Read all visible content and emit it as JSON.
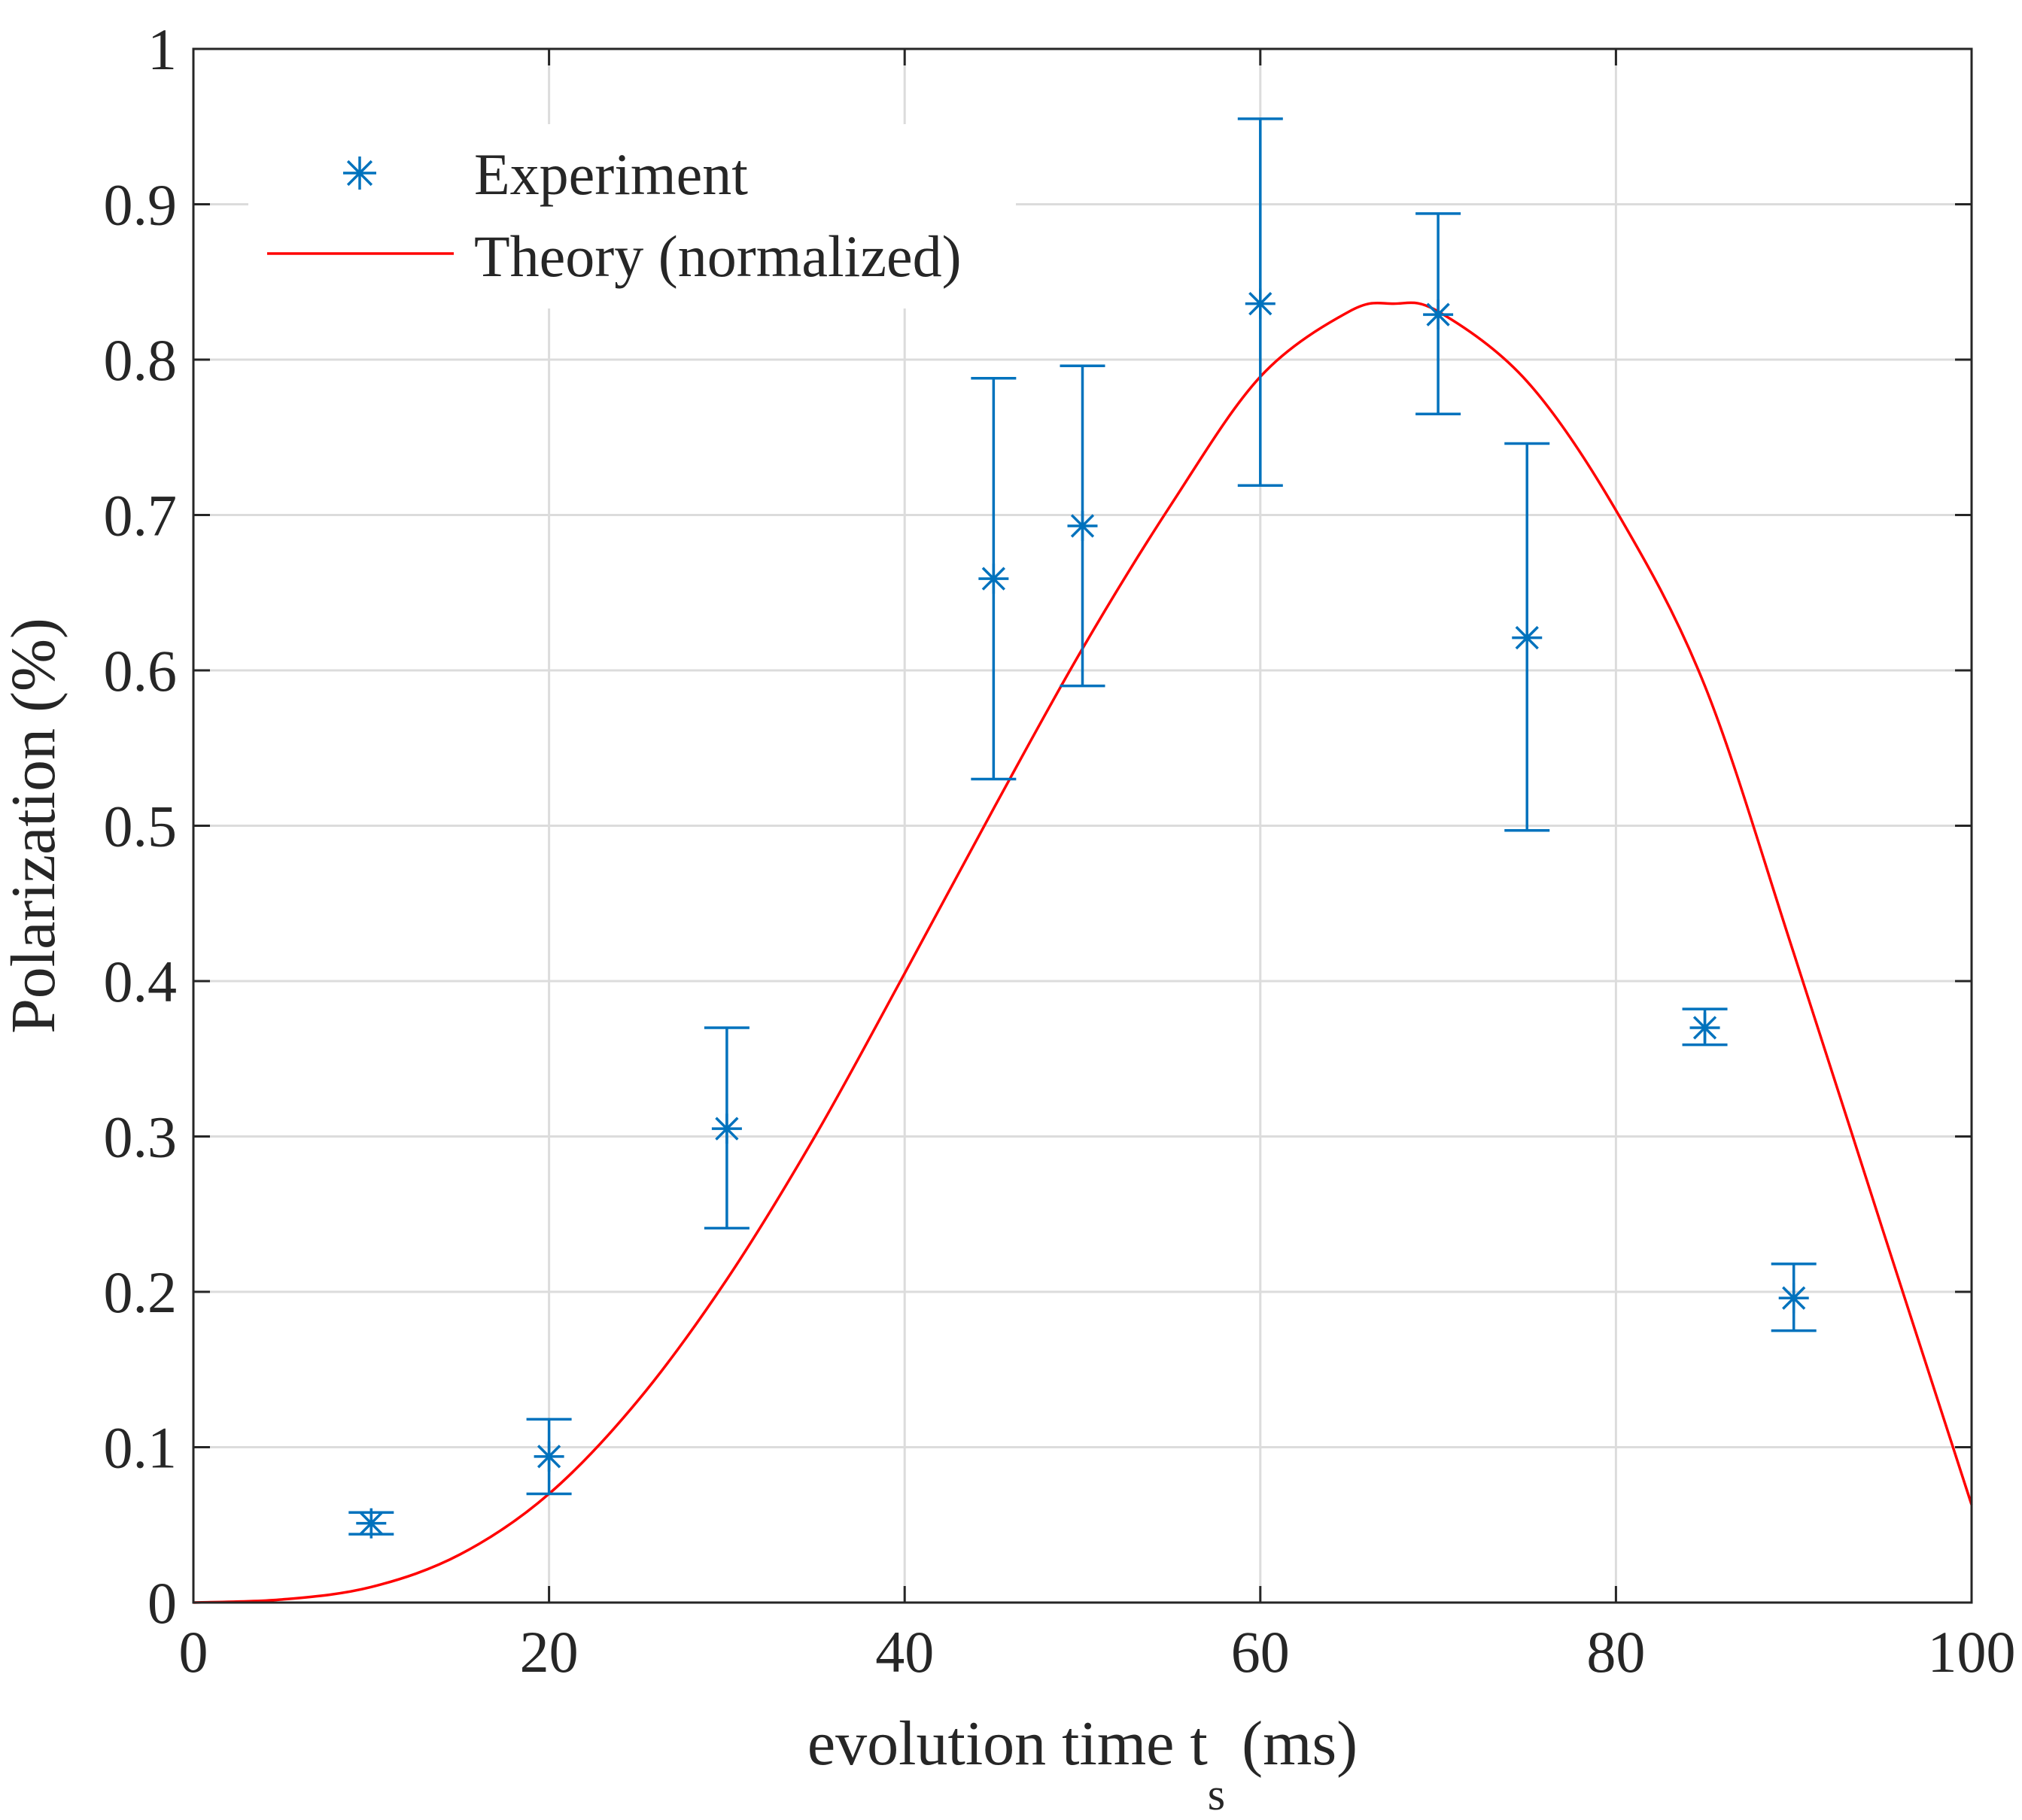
{
  "chart_data": {
    "type": "scatter",
    "title": "",
    "xlabel": "evolution time t",
    "xlabel_subscript": "s",
    "xlabel_unit": "(ms)",
    "ylabel": "Polarization (%)",
    "xlim": [
      0,
      100
    ],
    "ylim": [
      0,
      1
    ],
    "xticks": [
      0,
      20,
      40,
      60,
      80,
      100
    ],
    "yticks": [
      0,
      0.1,
      0.2,
      0.3,
      0.4,
      0.5,
      0.6,
      0.7,
      0.8,
      0.9,
      1
    ],
    "xtick_labels": [
      "0",
      "20",
      "40",
      "60",
      "80",
      "100"
    ],
    "ytick_labels": [
      "0",
      "0.1",
      "0.2",
      "0.3",
      "0.4",
      "0.5",
      "0.6",
      "0.7",
      "0.8",
      "0.9",
      "1"
    ],
    "grid": true,
    "legend_position": "top-left",
    "series": [
      {
        "name": "Experiment",
        "kind": "errorbar",
        "marker": "asterisk",
        "color": "#0072BD",
        "x": [
          10,
          20,
          30,
          45,
          50,
          60,
          70,
          75,
          85,
          90
        ],
        "y": [
          0.051,
          0.094,
          0.305,
          0.659,
          0.693,
          0.836,
          0.829,
          0.621,
          0.37,
          0.196
        ],
        "y_lower": [
          0.044,
          0.07,
          0.241,
          0.53,
          0.59,
          0.719,
          0.765,
          0.497,
          0.359,
          0.175
        ],
        "y_upper": [
          0.058,
          0.118,
          0.37,
          0.788,
          0.796,
          0.955,
          0.894,
          0.746,
          0.382,
          0.218
        ]
      },
      {
        "name": "Theory (normalized)",
        "kind": "line",
        "color": "#FF0000",
        "x": [
          0,
          5,
          10,
          15,
          20,
          25,
          30,
          35,
          40,
          45,
          50,
          55,
          60,
          65,
          67.5,
          70,
          75,
          80,
          85,
          90,
          95,
          100
        ],
        "y": [
          0,
          0.002,
          0.01,
          0.031,
          0.07,
          0.13,
          0.208,
          0.301,
          0.405,
          0.511,
          0.614,
          0.707,
          0.789,
          0.831,
          0.836,
          0.831,
          0.786,
          0.703,
          0.59,
          0.418,
          0.24,
          0.063
        ]
      }
    ]
  }
}
